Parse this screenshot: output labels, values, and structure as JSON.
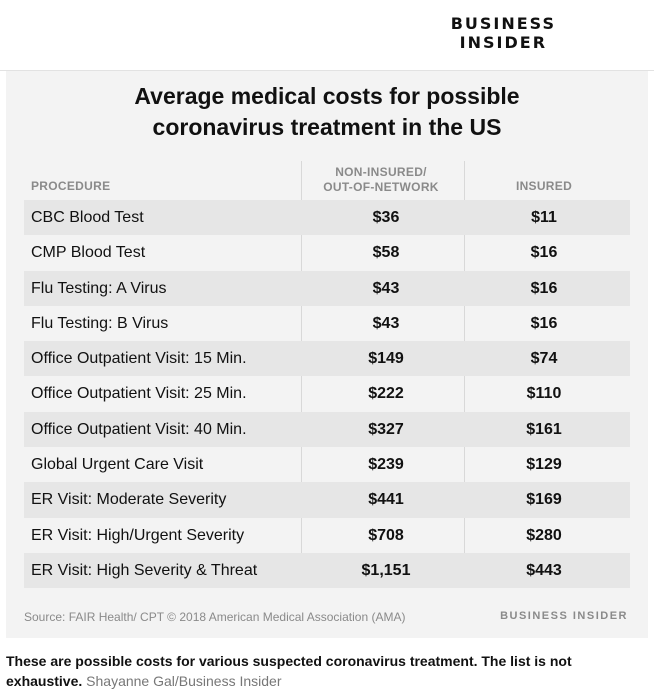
{
  "brand": {
    "line1": "BUSINESS",
    "line2": "INSIDER"
  },
  "chart_data": {
    "type": "table",
    "title_line1": "Average medical costs for possible",
    "title_line2": "coronavirus treatment in the US",
    "columns": {
      "procedure": "PROCEDURE",
      "non_insured_line1": "NON-INSURED/",
      "non_insured_line2": "OUT-OF-NETWORK",
      "insured": "INSURED"
    },
    "rows": [
      {
        "procedure": "CBC Blood Test",
        "non_insured": "$36",
        "insured": "$11"
      },
      {
        "procedure": "CMP Blood Test",
        "non_insured": "$58",
        "insured": "$16"
      },
      {
        "procedure": "Flu Testing: A Virus",
        "non_insured": "$43",
        "insured": "$16"
      },
      {
        "procedure": "Flu Testing: B Virus",
        "non_insured": "$43",
        "insured": "$16"
      },
      {
        "procedure": "Office Outpatient Visit: 15 Min.",
        "non_insured": "$149",
        "insured": "$74"
      },
      {
        "procedure": "Office Outpatient Visit: 25 Min.",
        "non_insured": "$222",
        "insured": "$110"
      },
      {
        "procedure": "Office Outpatient Visit: 40 Min.",
        "non_insured": "$327",
        "insured": "$161"
      },
      {
        "procedure": "Global Urgent Care Visit",
        "non_insured": "$239",
        "insured": "$129"
      },
      {
        "procedure": "ER Visit: Moderate Severity",
        "non_insured": "$441",
        "insured": "$169"
      },
      {
        "procedure": "ER Visit: High/Urgent Severity",
        "non_insured": "$708",
        "insured": "$280"
      },
      {
        "procedure": "ER Visit: High Severity & Threat",
        "non_insured": "$1,151",
        "insured": "$443"
      }
    ],
    "source": "Source: FAIR Health/ CPT © 2018 American Medical Association (AMA)",
    "footer_brand": "BUSINESS INSIDER"
  },
  "caption": {
    "text": "These are possible costs for various suspected coronavirus treatment. The list is not exhaustive.",
    "credit": "Shayanne Gal/Business Insider"
  }
}
